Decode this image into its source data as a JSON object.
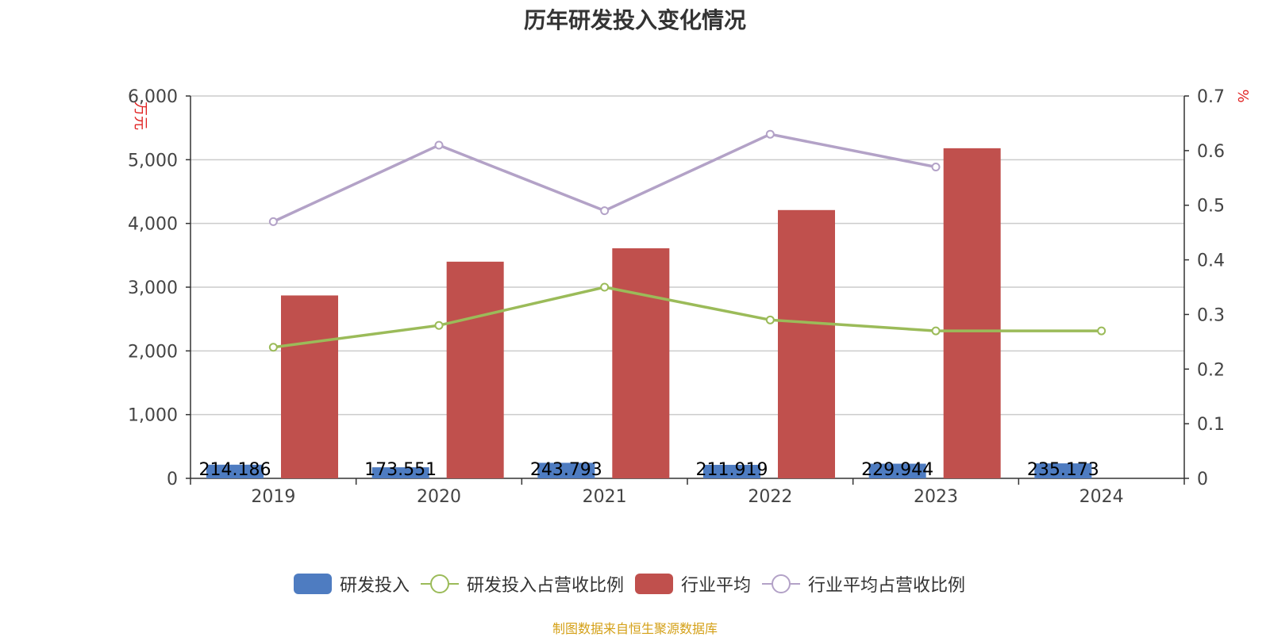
{
  "title": "历年研发投入变化情况",
  "source": "制图数据来自恒生聚源数据库",
  "chart_data": {
    "type": "bar",
    "categories": [
      "2019",
      "2020",
      "2021",
      "2022",
      "2023",
      "2024"
    ],
    "y_left": {
      "unit": "万元",
      "min": 0,
      "max": 6000,
      "ticks": [
        "0",
        "1,000",
        "2,000",
        "3,000",
        "4,000",
        "5,000",
        "6,000"
      ]
    },
    "y_right": {
      "unit": "%",
      "min": 0,
      "max": 0.7,
      "ticks": [
        "0",
        "0.1",
        "0.2",
        "0.3",
        "0.4",
        "0.5",
        "0.6",
        "0.7"
      ]
    },
    "grid": true,
    "legend_position": "bottom",
    "series": [
      {
        "name": "研发投入",
        "type": "bar",
        "axis": "left",
        "color": "#4e7cc1",
        "values": [
          214.186,
          173.551,
          243.793,
          211.919,
          229.944,
          235.173
        ],
        "labels": [
          "214.186",
          "173.551",
          "243.793",
          "211.919",
          "229.944",
          "235.173"
        ]
      },
      {
        "name": "研发投入占营收比例",
        "type": "line",
        "axis": "right",
        "color": "#9bbb59",
        "values": [
          0.24,
          0.28,
          0.35,
          0.29,
          0.27,
          0.27
        ]
      },
      {
        "name": "行业平均",
        "type": "bar",
        "axis": "left",
        "color": "#c0504d",
        "values": [
          2870,
          3400,
          3610,
          4210,
          5180,
          null
        ]
      },
      {
        "name": "行业平均占营收比例",
        "type": "line",
        "axis": "right",
        "color": "#b3a2c7",
        "values": [
          0.47,
          0.61,
          0.49,
          0.63,
          0.57,
          null
        ]
      }
    ]
  }
}
